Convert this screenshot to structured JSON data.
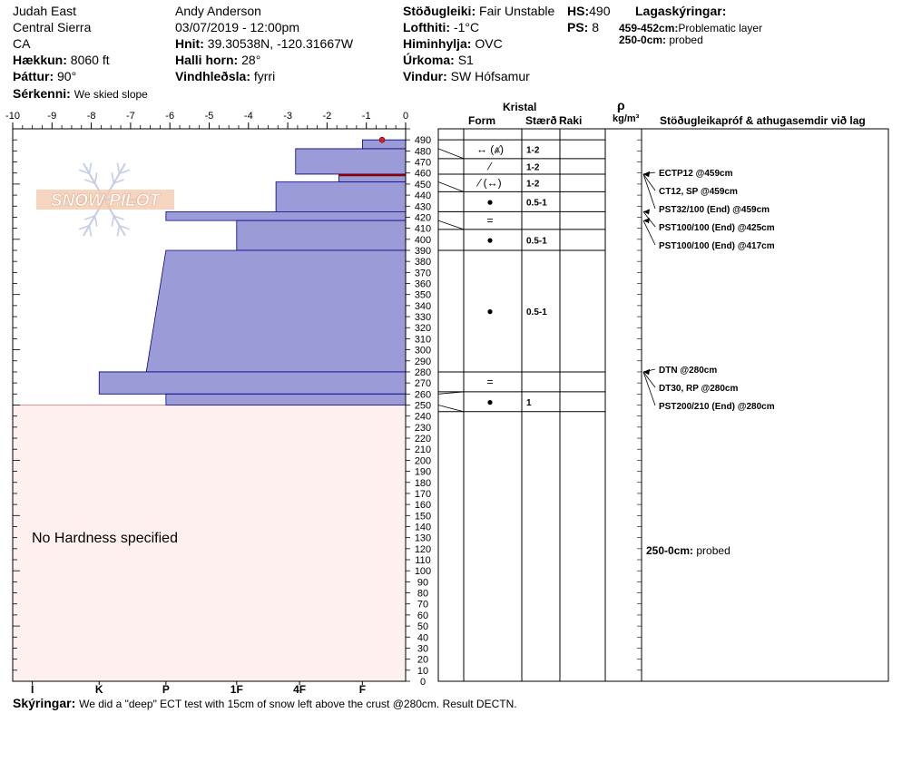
{
  "header": {
    "location": "Judah East",
    "range": "Central Sierra",
    "state": "CA",
    "elevation_label": "Hækkun:",
    "elevation_value": "8060 ft",
    "aspect_label": "Þáttur:",
    "aspect_value": "90°",
    "specifics_label": "Sérkenni:",
    "specifics_value": "We skied slope",
    "observer": "Andy Anderson",
    "datetime": "03/07/2019 - 12:00pm",
    "coords_label": "Hnit:",
    "coords_value": "39.30538N, -120.31667W",
    "slope_label": "Halli horn:",
    "slope_value": "28°",
    "wind_loading_label": "Vindhleðsla:",
    "wind_loading_value": "fyrri",
    "stability_label": "Stöðugleiki:",
    "stability_value": "Fair Unstable",
    "air_temp_label": "Lofthiti:",
    "air_temp_value": "-1°C",
    "sky_label": "Himinhylja:",
    "sky_value": "OVC",
    "precip_label": "Úrkoma:",
    "precip_value": "S1",
    "wind_label": "Vindur:",
    "wind_value": "SW Hófsamur",
    "hs_label": "HS:",
    "hs_value": "490",
    "ps_label": "PS:",
    "ps_value": "8",
    "legend_title": "Lagaskýringar:",
    "legend_items": [
      {
        "key": "459-452cm:",
        "text": "Problematic layer"
      },
      {
        "key": "250-0cm:",
        "text": "probed"
      }
    ]
  },
  "columns": {
    "crystal": "Kristal",
    "form": "Form",
    "size": "Stærð",
    "moisture": "Raki",
    "density_symbol": "ρ",
    "density_unit": "kg/m³",
    "tests": "Stöðugleikapróf & athugasemdir við lag"
  },
  "logo_text": "SNOW PILOT",
  "no_hardness_text": "No Hardness specified",
  "comments_label": "Skýringar:",
  "comments_value": "We did a \"deep\" ECT test with 15cm of snow left above the crust @280cm. Result DECTN.",
  "colors": {
    "layer_fill": "#9b9bd8",
    "layer_stroke": "#00008b",
    "probed_fill": "#fff0f0",
    "problem_line": "#8b0000",
    "surface_dot": "#cc2222"
  },
  "chart_data": {
    "type": "snow-profile",
    "hardness_axis": {
      "ticks": [
        -10,
        -9,
        -8,
        -7,
        -6,
        -5,
        -4,
        -3,
        -2,
        -1,
        0
      ],
      "tick_labels": [
        "-10",
        "-9",
        "-8",
        "-7",
        "-6",
        "-5",
        "-4",
        "-3",
        "-2",
        "-1",
        "0"
      ],
      "range": [
        -10,
        0
      ],
      "hand_labels": [
        {
          "label": "I",
          "value": -9.5
        },
        {
          "label": "K",
          "value": -7.8
        },
        {
          "label": "P",
          "value": -6.1
        },
        {
          "label": "1F",
          "value": -4.3
        },
        {
          "label": "4F",
          "value": -2.7
        },
        {
          "label": "F",
          "value": -1.1
        }
      ]
    },
    "depth_axis": {
      "range": [
        0,
        500
      ],
      "label_step": 10,
      "label_max": 490
    },
    "layers": [
      {
        "top": 490,
        "bottom": 482,
        "hardness": -1.1
      },
      {
        "top": 482,
        "bottom": 459,
        "hardness": -2.8
      },
      {
        "top": 459,
        "bottom": 452,
        "hardness": -1.7
      },
      {
        "top": 452,
        "bottom": 425,
        "hardness": -3.3
      },
      {
        "top": 425,
        "bottom": 417,
        "hardness": -6.1
      },
      {
        "top": 417,
        "bottom": 390,
        "hardness": -4.3
      },
      {
        "top": 390,
        "bottom": 280,
        "hardness": -6.1,
        "hardness_bottom": -6.6
      },
      {
        "top": 280,
        "bottom": 260,
        "hardness": -7.8
      },
      {
        "top": 260,
        "bottom": 250,
        "hardness": -6.1
      }
    ],
    "problem_layer": {
      "top": 459,
      "bottom": 452
    },
    "probed": {
      "top": 250,
      "bottom": 0
    },
    "surface_marker": {
      "depth": 490,
      "hardness": -0.6
    },
    "grain_rows": [
      {
        "top": 490,
        "bottom": 473,
        "form": "↔ (⩓̸)",
        "size": "1-2"
      },
      {
        "top": 473,
        "bottom": 459,
        "form": "⁄",
        "size": "1-2"
      },
      {
        "top": 459,
        "bottom": 443,
        "form": "⁄ (↔)",
        "size": "1-2"
      },
      {
        "top": 443,
        "bottom": 425,
        "form": "●",
        "size": "0.5-1"
      },
      {
        "top": 425,
        "bottom": 409,
        "form": "=",
        "size": ""
      },
      {
        "top": 409,
        "bottom": 390,
        "form": "●",
        "size": "0.5-1"
      },
      {
        "top": 390,
        "bottom": 280,
        "form": "●",
        "size": "0.5-1"
      },
      {
        "top": 280,
        "bottom": 262,
        "form": "=",
        "size": ""
      },
      {
        "top": 262,
        "bottom": 244,
        "form": "●",
        "size": "1"
      }
    ],
    "tests": [
      {
        "text": "ECTP12 @459cm",
        "depth": 459
      },
      {
        "text": "CT12, SP @459cm",
        "depth": 459
      },
      {
        "text": "PST32/100 (End) @459cm",
        "depth": 459
      },
      {
        "text": "PST100/100 (End) @425cm",
        "depth": 425
      },
      {
        "text": "PST100/100 (End) @417cm",
        "depth": 417
      },
      {
        "text": "DTN @280cm",
        "depth": 280
      },
      {
        "text": "DT30, RP @280cm",
        "depth": 280
      },
      {
        "text": "PST200/210 (End) @280cm",
        "depth": 280
      }
    ],
    "probed_comment": "250-0cm:",
    "probed_comment_text": "probed"
  }
}
